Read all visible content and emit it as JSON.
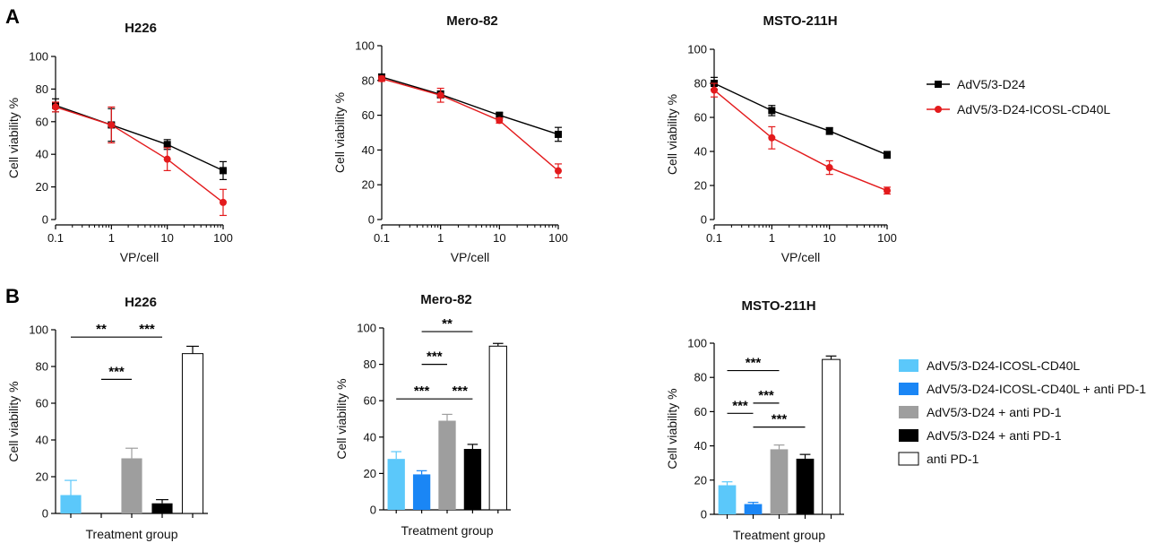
{
  "figure": {
    "panel_labels": [
      "A",
      "B"
    ]
  },
  "colors": {
    "series_black": "#000000",
    "series_red": "#e31a1c",
    "bar_light_blue": "#5bc8fa",
    "bar_blue": "#1a86f5",
    "bar_gray": "#9e9e9e",
    "bar_black": "#000000",
    "bar_white": "#ffffff"
  },
  "chart_data": [
    {
      "type": "line",
      "panel": "A",
      "title": "H226",
      "xlabel": "VP/cell",
      "ylabel": "Cell viability %",
      "x": [
        0.1,
        1,
        10,
        100
      ],
      "x_ticks": [
        "0.1",
        "1",
        "10",
        "100"
      ],
      "x_scale": "log",
      "ylim": [
        0,
        100
      ],
      "y_ticks": [
        0,
        20,
        40,
        60,
        80,
        100
      ],
      "series": [
        {
          "name": "AdV5/3-D24",
          "color": "#000000",
          "marker": "square",
          "values": [
            70,
            58,
            46,
            30
          ],
          "errors": [
            4,
            10,
            3,
            5.5
          ]
        },
        {
          "name": "AdV5/3-D24-ICOSL-CD40L",
          "color": "#e31a1c",
          "marker": "circle",
          "values": [
            69,
            58,
            37,
            10.5
          ],
          "errors": [
            3,
            11,
            7,
            8
          ]
        }
      ]
    },
    {
      "type": "line",
      "panel": "A",
      "title": "Mero-82",
      "xlabel": "VP/cell",
      "ylabel": "Cell viability %",
      "x": [
        0.1,
        1,
        10,
        100
      ],
      "x_ticks": [
        "0.1",
        "1",
        "10",
        "100"
      ],
      "x_scale": "log",
      "ylim": [
        0,
        100
      ],
      "y_ticks": [
        0,
        20,
        40,
        60,
        80,
        100
      ],
      "series": [
        {
          "name": "AdV5/3-D24",
          "color": "#000000",
          "marker": "square",
          "values": [
            82,
            72,
            60,
            49
          ],
          "errors": [
            1.5,
            2,
            1.5,
            4
          ]
        },
        {
          "name": "AdV5/3-D24-ICOSL-CD40L",
          "color": "#e31a1c",
          "marker": "circle",
          "values": [
            81,
            71.5,
            57,
            28
          ],
          "errors": [
            1.5,
            4,
            1.5,
            4
          ]
        }
      ]
    },
    {
      "type": "line",
      "panel": "A",
      "title": "MSTO-211H",
      "xlabel": "VP/cell",
      "ylabel": "Cell viability %",
      "x": [
        0.1,
        1,
        10,
        100
      ],
      "x_ticks": [
        "0.1",
        "1",
        "10",
        "100"
      ],
      "x_scale": "log",
      "ylim": [
        0,
        100
      ],
      "y_ticks": [
        0,
        20,
        40,
        60,
        80,
        100
      ],
      "series": [
        {
          "name": "AdV5/3-D24",
          "color": "#000000",
          "marker": "square",
          "values": [
            80,
            64,
            52,
            38
          ],
          "errors": [
            3.5,
            3,
            2,
            2
          ]
        },
        {
          "name": "AdV5/3-D24-ICOSL-CD40L",
          "color": "#e31a1c",
          "marker": "circle",
          "values": [
            76,
            48,
            30.5,
            17
          ],
          "errors": [
            4,
            6.5,
            4,
            2
          ]
        }
      ]
    },
    {
      "type": "bar",
      "panel": "B",
      "title": "H226",
      "xlabel": "Treatment group",
      "ylabel": "Cell viability %",
      "ylim": [
        0,
        100
      ],
      "y_ticks": [
        0,
        20,
        40,
        60,
        80,
        100
      ],
      "categories": [
        "AdV5/3-D24-ICOSL-CD40L",
        "AdV5/3-D24-ICOSL-CD40L + anti PD-1",
        "AdV5/3-D24 + anti PD-1",
        "AdV5/3-D24 + anti PD-1",
        "anti PD-1"
      ],
      "values": [
        10,
        0,
        30,
        5.5,
        87
      ],
      "errors": [
        8,
        0,
        5.5,
        2,
        4
      ],
      "significance": [
        {
          "from": 0,
          "to": 2,
          "label": "**",
          "y": 96
        },
        {
          "from": 2,
          "to": 3,
          "label": "***",
          "y": 96
        },
        {
          "from": 1,
          "to": 2,
          "label": "***",
          "y": 73
        }
      ]
    },
    {
      "type": "bar",
      "panel": "B",
      "title": "Mero-82",
      "xlabel": "Treatment group",
      "ylabel": "Cell viability %",
      "ylim": [
        0,
        100
      ],
      "y_ticks": [
        0,
        20,
        40,
        60,
        80,
        100
      ],
      "categories": [
        "AdV5/3-D24-ICOSL-CD40L",
        "AdV5/3-D24-ICOSL-CD40L + anti PD-1",
        "AdV5/3-D24 + anti PD-1",
        "AdV5/3-D24 + anti PD-1",
        "anti PD-1"
      ],
      "values": [
        28,
        19.5,
        49,
        33.5,
        90
      ],
      "errors": [
        4,
        2,
        3.5,
        2.5,
        1.5
      ],
      "significance": [
        {
          "from": 1,
          "to": 3,
          "label": "**",
          "y": 98
        },
        {
          "from": 1,
          "to": 2,
          "label": "***",
          "y": 80
        },
        {
          "from": 0,
          "to": 2,
          "label": "***",
          "y": 61
        },
        {
          "from": 2,
          "to": 3,
          "label": "***",
          "y": 61
        }
      ]
    },
    {
      "type": "bar",
      "panel": "B",
      "title": "MSTO-211H",
      "xlabel": "Treatment group",
      "ylabel": "Cell viability %",
      "ylim": [
        0,
        100
      ],
      "y_ticks": [
        0,
        20,
        40,
        60,
        80,
        100
      ],
      "categories": [
        "AdV5/3-D24-ICOSL-CD40L",
        "AdV5/3-D24-ICOSL-CD40L + anti PD-1",
        "AdV5/3-D24 + anti PD-1",
        "AdV5/3-D24 + anti PD-1",
        "anti PD-1"
      ],
      "values": [
        17,
        6,
        38,
        32.5,
        90.5
      ],
      "errors": [
        2,
        1,
        2.5,
        2.5,
        2
      ],
      "significance": [
        {
          "from": 0,
          "to": 2,
          "label": "***",
          "y": 84
        },
        {
          "from": 1,
          "to": 2,
          "label": "***",
          "y": 65
        },
        {
          "from": 0,
          "to": 1,
          "label": "***",
          "y": 59
        },
        {
          "from": 1,
          "to": 3,
          "label": "***",
          "y": 51
        }
      ]
    }
  ],
  "legend_a": [
    {
      "label": "AdV5/3-D24",
      "color": "#000000",
      "marker": "square"
    },
    {
      "label": "AdV5/3-D24-ICOSL-CD40L",
      "color": "#e31a1c",
      "marker": "circle"
    }
  ],
  "legend_b": [
    {
      "label": "AdV5/3-D24-ICOSL-CD40L",
      "color": "#5bc8fa"
    },
    {
      "label": "AdV5/3-D24-ICOSL-CD40L + anti PD-1",
      "color": "#1a86f5"
    },
    {
      "label": "AdV5/3-D24 + anti PD-1",
      "color": "#9e9e9e"
    },
    {
      "label": "AdV5/3-D24 + anti PD-1",
      "color": "#000000"
    },
    {
      "label": "anti PD-1",
      "color": "#ffffff"
    }
  ]
}
